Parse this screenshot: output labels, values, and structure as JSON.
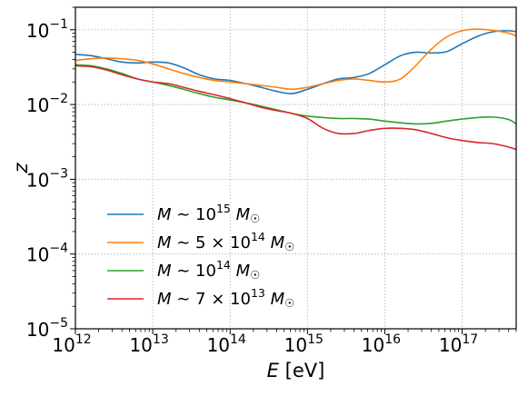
{
  "chart_data": {
    "type": "line",
    "xlabel": "E [eV]",
    "ylabel": "z",
    "xscale": "log",
    "yscale": "log",
    "xlim": [
      1000000000000.0,
      5e+17
    ],
    "ylim": [
      1e-05,
      0.2
    ],
    "grid": true,
    "legend_position": "lower-left",
    "x_ticks": [
      {
        "base": "10",
        "exp": "12"
      },
      {
        "base": "10",
        "exp": "13"
      },
      {
        "base": "10",
        "exp": "14"
      },
      {
        "base": "10",
        "exp": "15"
      },
      {
        "base": "10",
        "exp": "16"
      },
      {
        "base": "10",
        "exp": "17"
      }
    ],
    "y_ticks": [
      {
        "base": "10",
        "exp": "−1"
      },
      {
        "base": "10",
        "exp": "−2"
      },
      {
        "base": "10",
        "exp": "−3"
      },
      {
        "base": "10",
        "exp": "−4"
      },
      {
        "base": "10",
        "exp": "−5"
      }
    ],
    "series": [
      {
        "name": "M ~ 10^15 M☉",
        "label": {
          "pre": "M ∼ 10",
          "sup": "15",
          "post": " M☉"
        },
        "color": "#1f77b4",
        "x": [
          1000000000000.0,
          1600000000000.0,
          2500000000000.0,
          4000000000000.0,
          6300000000000.0,
          10000000000000.0,
          16000000000000.0,
          25000000000000.0,
          40000000000000.0,
          63000000000000.0,
          100000000000000.0,
          160000000000000.0,
          250000000000000.0,
          400000000000000.0,
          630000000000000.0,
          1000000000000000.0,
          1600000000000000.0,
          2500000000000000.0,
          4000000000000000.0,
          6300000000000000.0,
          1e+16,
          1.6e+16,
          2.5e+16,
          4e+16,
          6.3e+16,
          1e+17,
          1.6e+17,
          2.5e+17,
          4e+17,
          5e+17
        ],
        "y": [
          0.047,
          0.045,
          0.041,
          0.037,
          0.036,
          0.037,
          0.036,
          0.031,
          0.025,
          0.022,
          0.021,
          0.019,
          0.017,
          0.015,
          0.014,
          0.016,
          0.019,
          0.022,
          0.023,
          0.026,
          0.034,
          0.045,
          0.05,
          0.049,
          0.051,
          0.065,
          0.082,
          0.094,
          0.097,
          0.094
        ]
      },
      {
        "name": "M ~ 5×10^14 M☉",
        "label": {
          "pre": "M ∼ 5 × 10",
          "sup": "14",
          "post": " M☉"
        },
        "color": "#ff7f0e",
        "x": [
          1000000000000.0,
          1600000000000.0,
          2500000000000.0,
          4000000000000.0,
          6300000000000.0,
          10000000000000.0,
          16000000000000.0,
          25000000000000.0,
          40000000000000.0,
          63000000000000.0,
          100000000000000.0,
          160000000000000.0,
          250000000000000.0,
          400000000000000.0,
          630000000000000.0,
          1000000000000000.0,
          1600000000000000.0,
          2500000000000000.0,
          4000000000000000.0,
          6300000000000000.0,
          1e+16,
          1.6e+16,
          2.5e+16,
          4e+16,
          6.3e+16,
          1e+17,
          1.6e+17,
          2.5e+17,
          4e+17,
          5e+17
        ],
        "y": [
          0.039,
          0.041,
          0.042,
          0.041,
          0.039,
          0.035,
          0.03,
          0.026,
          0.023,
          0.021,
          0.02,
          0.019,
          0.018,
          0.017,
          0.016,
          0.017,
          0.019,
          0.021,
          0.022,
          0.021,
          0.02,
          0.022,
          0.033,
          0.055,
          0.08,
          0.097,
          0.102,
          0.098,
          0.09,
          0.083
        ]
      },
      {
        "name": "M ~ 10^14 M☉",
        "label": {
          "pre": "M ∼ 10",
          "sup": "14",
          "post": " M☉"
        },
        "color": "#2ca02c",
        "x": [
          1000000000000.0,
          1600000000000.0,
          2500000000000.0,
          4000000000000.0,
          6300000000000.0,
          10000000000000.0,
          16000000000000.0,
          25000000000000.0,
          40000000000000.0,
          63000000000000.0,
          100000000000000.0,
          160000000000000.0,
          250000000000000.0,
          400000000000000.0,
          630000000000000.0,
          1000000000000000.0,
          1600000000000000.0,
          2500000000000000.0,
          4000000000000000.0,
          6300000000000000.0,
          1e+16,
          1.6e+16,
          2.5e+16,
          4e+16,
          6.3e+16,
          1e+17,
          1.6e+17,
          2.5e+17,
          4e+17,
          5e+17
        ],
        "y": [
          0.034,
          0.033,
          0.03,
          0.026,
          0.022,
          0.02,
          0.018,
          0.016,
          0.014,
          0.0125,
          0.0115,
          0.0105,
          0.0095,
          0.0085,
          0.0076,
          0.007,
          0.0067,
          0.0065,
          0.0065,
          0.0064,
          0.006,
          0.0057,
          0.0055,
          0.0056,
          0.006,
          0.0064,
          0.0067,
          0.0068,
          0.0063,
          0.0055
        ]
      },
      {
        "name": "M ~ 7×10^13 M☉",
        "label": {
          "pre": "M ∼ 7 × 10",
          "sup": "13",
          "post": " M☉"
        },
        "color": "#d62728",
        "x": [
          1000000000000.0,
          1600000000000.0,
          2500000000000.0,
          4000000000000.0,
          6300000000000.0,
          10000000000000.0,
          16000000000000.0,
          25000000000000.0,
          40000000000000.0,
          63000000000000.0,
          100000000000000.0,
          160000000000000.0,
          250000000000000.0,
          400000000000000.0,
          630000000000000.0,
          1000000000000000.0,
          1600000000000000.0,
          2500000000000000.0,
          4000000000000000.0,
          6300000000000000.0,
          1e+16,
          1.6e+16,
          2.5e+16,
          4e+16,
          6.3e+16,
          1e+17,
          1.6e+17,
          2.5e+17,
          4e+17,
          5e+17
        ],
        "y": [
          0.033,
          0.032,
          0.029,
          0.025,
          0.022,
          0.02,
          0.019,
          0.017,
          0.015,
          0.0135,
          0.012,
          0.0105,
          0.0092,
          0.0083,
          0.0076,
          0.0065,
          0.0048,
          0.0041,
          0.0041,
          0.0045,
          0.0048,
          0.0048,
          0.0046,
          0.0041,
          0.0036,
          0.0033,
          0.0031,
          0.003,
          0.0027,
          0.0025
        ]
      }
    ]
  }
}
